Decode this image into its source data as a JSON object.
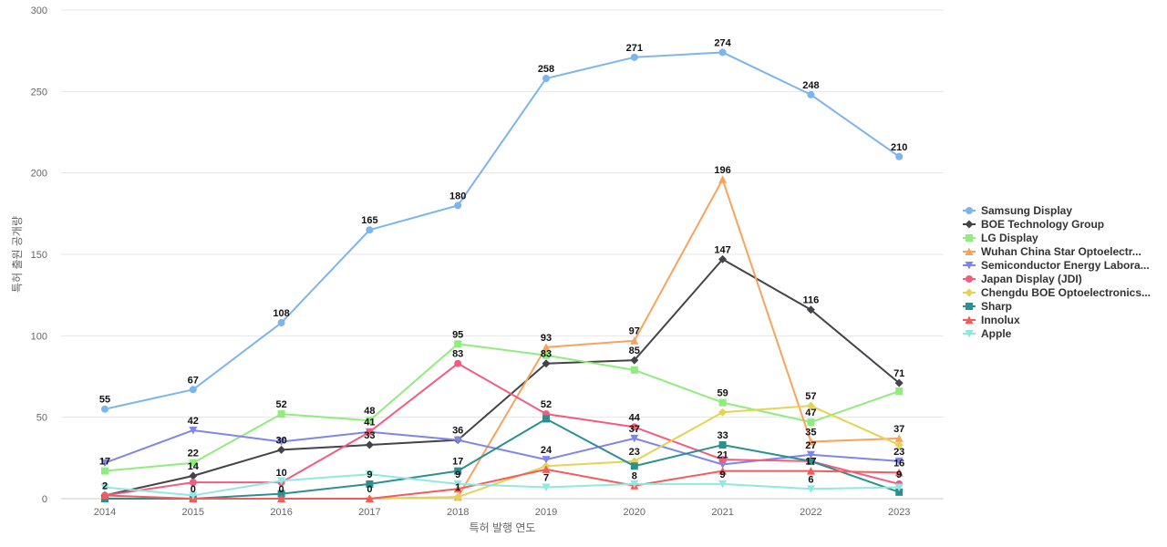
{
  "chart_data": {
    "type": "line",
    "xlabel": "특허 발행 연도",
    "ylabel": "특허 출원 공개량",
    "x": [
      "2014",
      "2015",
      "2016",
      "2017",
      "2018",
      "2019",
      "2020",
      "2021",
      "2022",
      "2023"
    ],
    "yticks": [
      0,
      50,
      100,
      150,
      200,
      250,
      300
    ],
    "ylim": [
      0,
      300
    ],
    "grid": true,
    "legend": "right",
    "series": [
      {
        "name": "Samsung Display",
        "color": "#7cb5ec",
        "marker": "circle",
        "values": [
          55,
          67,
          108,
          165,
          180,
          258,
          271,
          274,
          248,
          210
        ]
      },
      {
        "name": "BOE Technology Group",
        "color": "#434348",
        "marker": "diamond",
        "values": [
          2,
          14,
          30,
          33,
          36,
          83,
          85,
          147,
          116,
          71
        ]
      },
      {
        "name": "LG Display",
        "color": "#90ed7d",
        "marker": "square",
        "values": [
          17,
          22,
          52,
          48,
          95,
          88,
          79,
          59,
          47,
          66
        ]
      },
      {
        "name": "Wuhan China Star Optoelectr...",
        "color": "#f7a35c",
        "marker": "triangle",
        "values": [
          0,
          0,
          0,
          0,
          1,
          93,
          97,
          196,
          35,
          37
        ]
      },
      {
        "name": "Semiconductor Energy Labora...",
        "color": "#8085e9",
        "marker": "triangle-down",
        "values": [
          22,
          42,
          35,
          41,
          36,
          24,
          37,
          21,
          27,
          23
        ]
      },
      {
        "name": "Japan Display (JDI)",
        "color": "#f15c80",
        "marker": "circle",
        "values": [
          2,
          10,
          10,
          41,
          83,
          52,
          44,
          24,
          23,
          9
        ]
      },
      {
        "name": "Chengdu BOE Optoelectronics...",
        "color": "#e4d354",
        "marker": "diamond",
        "values": [
          0,
          0,
          0,
          0,
          1,
          20,
          23,
          53,
          57,
          33
        ]
      },
      {
        "name": "Sharp",
        "color": "#2b908f",
        "marker": "square",
        "values": [
          0,
          0,
          3,
          9,
          17,
          49,
          20,
          33,
          23,
          4
        ]
      },
      {
        "name": "Innolux",
        "color": "#f45b5b",
        "marker": "triangle",
        "values": [
          2,
          0,
          0,
          0,
          6,
          18,
          8,
          17,
          17,
          16
        ]
      },
      {
        "name": "Apple",
        "color": "#91e8e1",
        "marker": "triangle-down",
        "values": [
          7,
          2,
          11,
          15,
          9,
          7,
          9,
          9,
          6,
          7
        ]
      }
    ],
    "data_labels": [
      {
        "x": "2014",
        "text": "55",
        "value": 55
      },
      {
        "x": "2015",
        "text": "67",
        "value": 67
      },
      {
        "x": "2016",
        "text": "108",
        "value": 108
      },
      {
        "x": "2017",
        "text": "165",
        "value": 165
      },
      {
        "x": "2018",
        "text": "180",
        "value": 180
      },
      {
        "x": "2019",
        "text": "258",
        "value": 258
      },
      {
        "x": "2020",
        "text": "271",
        "value": 271
      },
      {
        "x": "2021",
        "text": "274",
        "value": 274
      },
      {
        "x": "2022",
        "text": "248",
        "value": 248
      },
      {
        "x": "2023",
        "text": "210",
        "value": 210
      },
      {
        "x": "2021",
        "text": "196",
        "value": 196
      },
      {
        "x": "2021",
        "text": "147",
        "value": 147
      },
      {
        "x": "2022",
        "text": "116",
        "value": 116
      },
      {
        "x": "2018",
        "text": "95",
        "value": 95
      },
      {
        "x": "2019",
        "text": "93",
        "value": 93
      },
      {
        "x": "2020",
        "text": "97",
        "value": 97
      },
      {
        "x": "2018",
        "text": "83",
        "value": 83
      },
      {
        "x": "2019",
        "text": "83",
        "value": 83
      },
      {
        "x": "2020",
        "text": "85",
        "value": 85
      },
      {
        "x": "2023",
        "text": "71",
        "value": 71
      },
      {
        "x": "2021",
        "text": "59",
        "value": 59
      },
      {
        "x": "2022",
        "text": "57",
        "value": 57
      },
      {
        "x": "2014",
        "text": "17",
        "value": 17
      },
      {
        "x": "2014",
        "text": "2",
        "value": 2
      },
      {
        "x": "2015",
        "text": "42",
        "value": 42
      },
      {
        "x": "2015",
        "text": "22",
        "value": 22
      },
      {
        "x": "2015",
        "text": "14",
        "value": 14
      },
      {
        "x": "2015",
        "text": "0",
        "value": 0
      },
      {
        "x": "2016",
        "text": "52",
        "value": 52
      },
      {
        "x": "2016",
        "text": "30",
        "value": 30
      },
      {
        "x": "2016",
        "text": "10",
        "value": 10
      },
      {
        "x": "2016",
        "text": "0",
        "value": 0
      },
      {
        "x": "2017",
        "text": "48",
        "value": 48
      },
      {
        "x": "2017",
        "text": "41",
        "value": 41
      },
      {
        "x": "2017",
        "text": "33",
        "value": 33
      },
      {
        "x": "2017",
        "text": "9",
        "value": 9
      },
      {
        "x": "2017",
        "text": "0",
        "value": 0
      },
      {
        "x": "2018",
        "text": "36",
        "value": 36
      },
      {
        "x": "2018",
        "text": "17",
        "value": 17
      },
      {
        "x": "2018",
        "text": "9",
        "value": 9
      },
      {
        "x": "2018",
        "text": "1",
        "value": 1
      },
      {
        "x": "2019",
        "text": "52",
        "value": 52
      },
      {
        "x": "2019",
        "text": "24",
        "value": 24
      },
      {
        "x": "2019",
        "text": "7",
        "value": 7
      },
      {
        "x": "2020",
        "text": "44",
        "value": 44
      },
      {
        "x": "2020",
        "text": "37",
        "value": 37
      },
      {
        "x": "2020",
        "text": "23",
        "value": 23
      },
      {
        "x": "2020",
        "text": "8",
        "value": 8
      },
      {
        "x": "2021",
        "text": "33",
        "value": 33
      },
      {
        "x": "2021",
        "text": "21",
        "value": 21
      },
      {
        "x": "2021",
        "text": "9",
        "value": 9
      },
      {
        "x": "2022",
        "text": "47",
        "value": 47
      },
      {
        "x": "2022",
        "text": "35",
        "value": 35
      },
      {
        "x": "2022",
        "text": "27",
        "value": 27
      },
      {
        "x": "2022",
        "text": "17",
        "value": 17
      },
      {
        "x": "2022",
        "text": "6",
        "value": 6
      },
      {
        "x": "2023",
        "text": "37",
        "value": 37
      },
      {
        "x": "2023",
        "text": "23",
        "value": 23
      },
      {
        "x": "2023",
        "text": "16",
        "value": 16
      },
      {
        "x": "2023",
        "text": "9",
        "value": 9
      }
    ]
  }
}
